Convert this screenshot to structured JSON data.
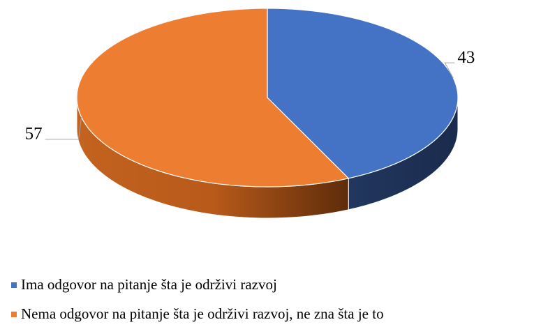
{
  "chart_data": {
    "type": "pie",
    "categories": [
      "Ima odgovor na pitanje šta je održivi razvoj",
      "Nema odgovor na pitanje šta je održivi razvoj, ne zna šta je to"
    ],
    "values": [
      43,
      57
    ],
    "colors": [
      "#4472c4",
      "#ed7d31"
    ]
  }
}
